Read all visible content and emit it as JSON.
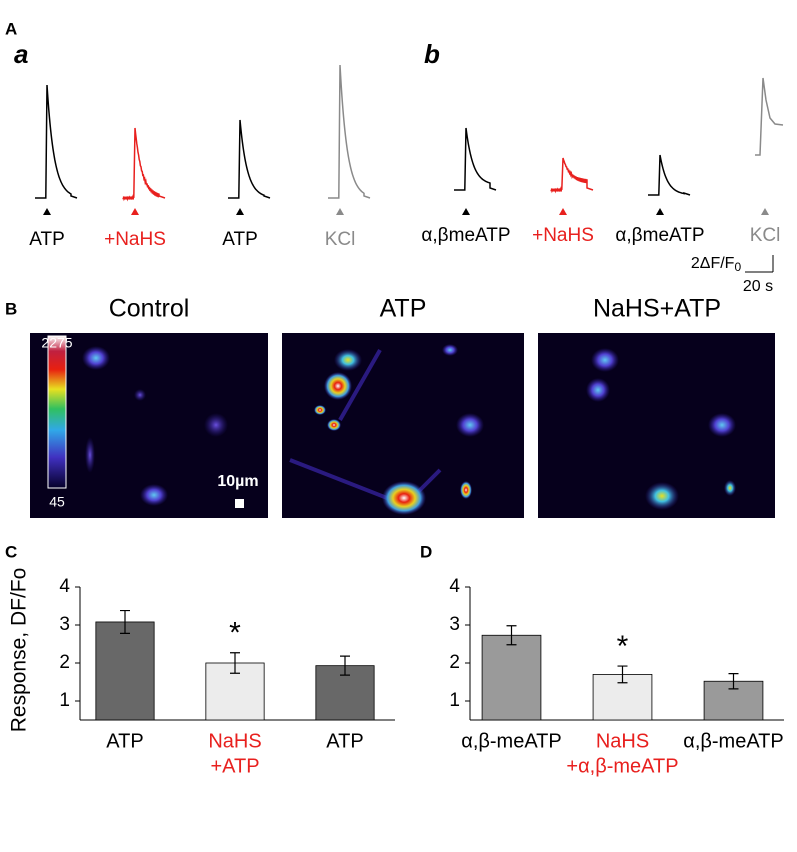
{
  "panel_a": {
    "label": "A",
    "sub_a": "a",
    "sub_b": "b",
    "traces_a": [
      {
        "label": "ATP",
        "color": "#000000"
      },
      {
        "label": "+NaHS",
        "color": "#e8201e"
      },
      {
        "label": "ATP",
        "color": "#000000"
      },
      {
        "label": "KCl",
        "color": "#8a8a8a"
      }
    ],
    "traces_b": [
      {
        "label": "α,βmeATP",
        "color": "#000000"
      },
      {
        "label": "+NaHS",
        "color": "#e8201e"
      },
      {
        "label": "α,βmeATP",
        "color": "#000000"
      },
      {
        "label": "KCl",
        "color": "#8a8a8a"
      }
    ],
    "scale_y": [
      "2ΔF/F",
      "0"
    ],
    "scale_x": "20 s"
  },
  "panel_b": {
    "label": "B",
    "titles": [
      "Control",
      "ATP",
      "NaHS+ATP"
    ],
    "colorbar_ticks": [
      2275,
      45
    ],
    "scale": "10µm"
  },
  "chart_data": [
    {
      "type": "bar",
      "panel": "C",
      "ylabel": "Response, DF/Fo",
      "categories": [
        [
          "ATP"
        ],
        [
          "NaHS",
          "+ATP"
        ],
        [
          "ATP"
        ]
      ],
      "label_colors": [
        "#000000",
        "#e8201e",
        "#000000"
      ],
      "values": [
        3.08,
        2.0,
        1.93
      ],
      "errors": [
        0.3,
        0.27,
        0.25
      ],
      "colors": [
        "#686868",
        "#ececec",
        "#686868"
      ],
      "significance": [
        null,
        "*",
        null
      ],
      "ylim": [
        0.5,
        4
      ],
      "yticks": [
        1,
        2,
        3,
        4
      ]
    },
    {
      "type": "bar",
      "panel": "D",
      "categories": [
        [
          "α,β-meATP"
        ],
        [
          "NaHS",
          "+α,β-meATP"
        ],
        [
          "α,β-meATP"
        ]
      ],
      "label_colors": [
        "#000000",
        "#e8201e",
        "#000000"
      ],
      "values": [
        2.73,
        1.7,
        1.52
      ],
      "errors": [
        0.25,
        0.22,
        0.2
      ],
      "colors": [
        "#9a9a9a",
        "#ececec",
        "#9a9a9a"
      ],
      "significance": [
        null,
        "*",
        null
      ],
      "ylim": [
        0.5,
        4
      ],
      "yticks": [
        1,
        2,
        3,
        4
      ]
    }
  ]
}
